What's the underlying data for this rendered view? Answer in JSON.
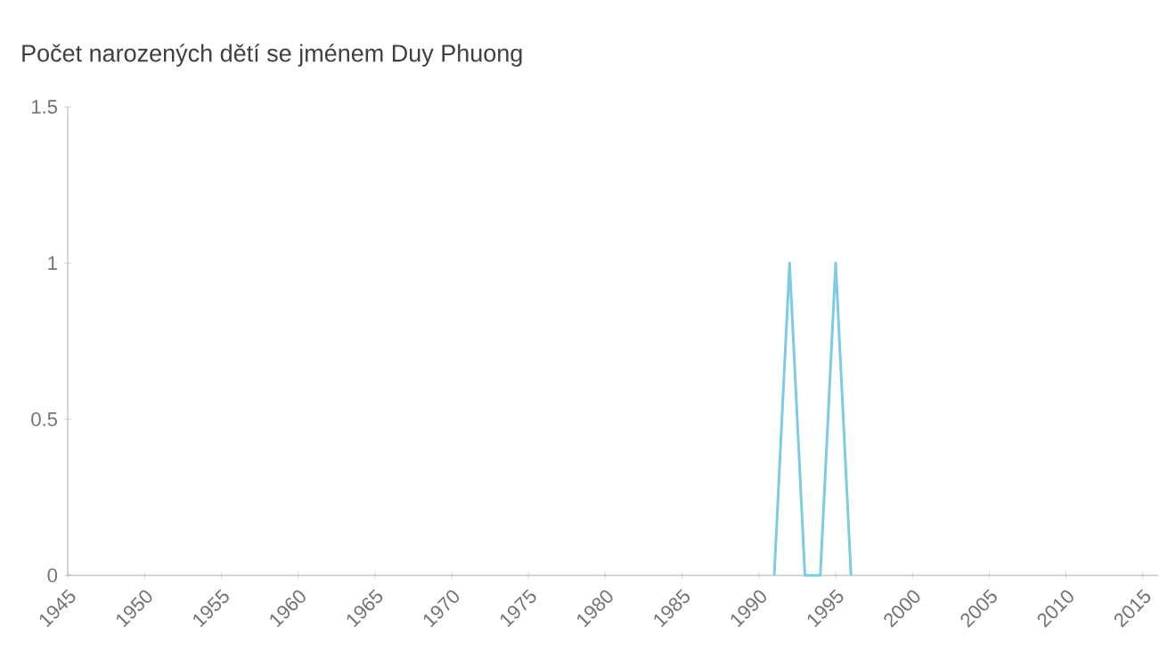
{
  "chart_data": {
    "type": "line",
    "title": "Počet narozených dětí se jménem Duy Phuong",
    "x": [
      1991,
      1992,
      1993,
      1994,
      1995,
      1996
    ],
    "series": [
      {
        "color": "#7ecbe6",
        "values": [
          0,
          1,
          0,
          0,
          1,
          0
        ]
      }
    ],
    "xlim": [
      1945,
      2016
    ],
    "ylim": [
      0,
      1.5
    ],
    "xticks": [
      1945,
      1950,
      1955,
      1960,
      1965,
      1970,
      1975,
      1980,
      1985,
      1990,
      1995,
      2000,
      2005,
      2010,
      2015
    ],
    "yticks": [
      0,
      0.5,
      1,
      1.5
    ],
    "grid": false,
    "marker": "none",
    "line_style": "solid"
  }
}
